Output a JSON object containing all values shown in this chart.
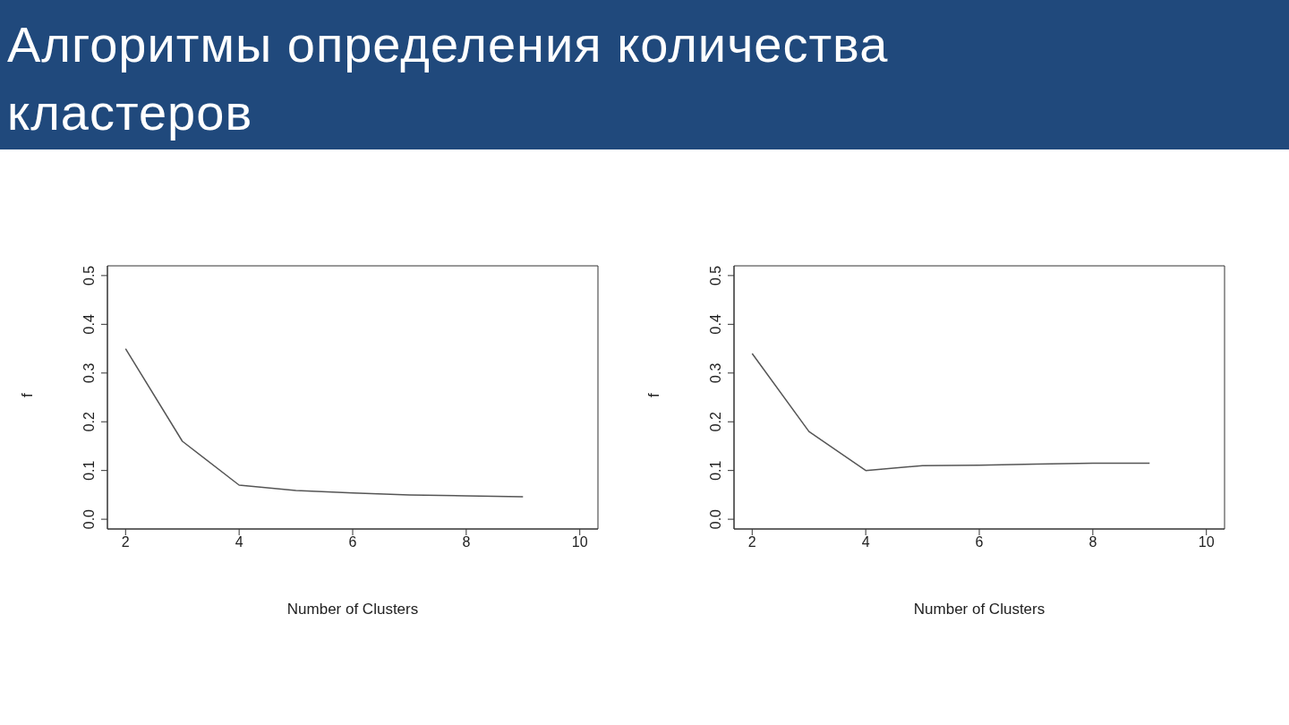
{
  "chart_data": [
    {
      "type": "line",
      "title": "Алгоритмы определения количества кластеров",
      "xlabel": "Number of Clusters",
      "ylabel": "f",
      "x": [
        2,
        3,
        4,
        5,
        6,
        7,
        8,
        9
      ],
      "values": [
        0.35,
        0.16,
        0.07,
        0.059,
        0.054,
        0.05,
        0.048,
        0.046
      ],
      "color": "#555555",
      "xlim": [
        1.68,
        10.32
      ],
      "ylim": [
        -0.02,
        0.52
      ],
      "xticks": [
        2,
        4,
        6,
        8,
        10
      ],
      "yticks": [
        {
          "value": 0,
          "label": "0.0"
        },
        0.1,
        0.2,
        0.3,
        0.4,
        0.5
      ]
    },
    {
      "type": "line",
      "xlabel": "Number of Clusters",
      "ylabel": "f",
      "x": [
        2,
        3,
        4,
        5,
        6,
        7,
        8,
        9
      ],
      "values": [
        0.34,
        0.18,
        0.1,
        0.11,
        0.111,
        0.113,
        0.115,
        0.115
      ],
      "color": "#555555",
      "xlim": [
        1.68,
        10.32
      ],
      "ylim": [
        -0.02,
        0.52
      ],
      "xticks": [
        2,
        4,
        6,
        8,
        10
      ],
      "yticks": [
        {
          "value": 0,
          "label": "0.0"
        },
        0.1,
        0.2,
        0.3,
        0.4,
        0.5
      ]
    }
  ]
}
